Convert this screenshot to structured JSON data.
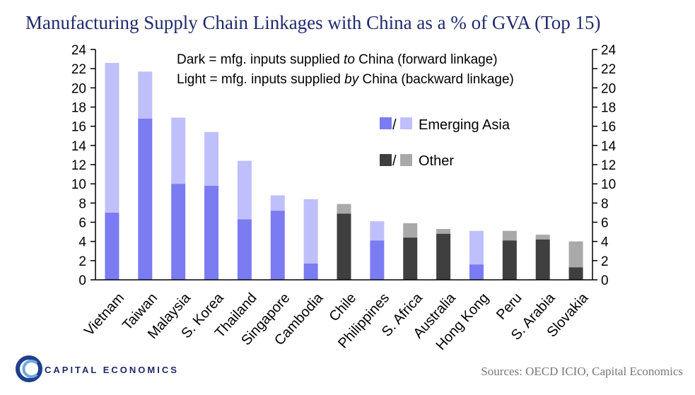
{
  "title": "Manufacturing Supply Chain Linkages with China as a % of GVA (Top 15)",
  "notes": {
    "dark_prefix": "Dark = mfg. inputs supplied ",
    "dark_em": "to",
    "dark_suffix": " China (forward linkage)",
    "light_prefix": "Light = mfg. inputs supplied ",
    "light_em": "by",
    "light_suffix": " China (backward linkage)"
  },
  "legend": {
    "sep": "/",
    "emerging_asia": "Emerging Asia",
    "other": "Other"
  },
  "colors": {
    "asia_dark": "#7b7bf2",
    "asia_light": "#bfbffb",
    "other_dark": "#3f3f3f",
    "other_light": "#a9a9a9",
    "title": "#1f2a6b",
    "logo_blue": "#1f3f8f",
    "logo_light": "#6fa8dc"
  },
  "brand": "CAPITAL ECONOMICS",
  "source": "Sources:  OECD ICIO, Capital Economics",
  "chart_data": {
    "type": "bar",
    "stacked": true,
    "categories": [
      "Vietnam",
      "Taiwan",
      "Malaysia",
      "S. Korea",
      "Thailand",
      "Singapore",
      "Cambodia",
      "Chile",
      "Philippines",
      "S. Africa",
      "Australia",
      "Hong Kong",
      "Peru",
      "S. Arabia",
      "Slovakia"
    ],
    "groups": [
      "Emerging Asia",
      "Emerging Asia",
      "Emerging Asia",
      "Emerging Asia",
      "Emerging Asia",
      "Emerging Asia",
      "Emerging Asia",
      "Other",
      "Emerging Asia",
      "Other",
      "Other",
      "Emerging Asia",
      "Other",
      "Other",
      "Other"
    ],
    "forward": [
      7.0,
      16.8,
      10.0,
      9.8,
      6.3,
      7.2,
      1.7,
      6.9,
      4.1,
      4.4,
      4.8,
      1.6,
      4.1,
      4.2,
      1.3
    ],
    "total": [
      22.6,
      21.7,
      16.9,
      15.4,
      12.4,
      8.8,
      8.4,
      7.9,
      6.1,
      5.9,
      5.3,
      5.1,
      5.1,
      4.7,
      4.0
    ],
    "ylim": [
      0,
      24
    ],
    "yticks": [
      "0",
      "2",
      "4",
      "6",
      "8",
      "10",
      "12",
      "14",
      "16",
      "18",
      "20",
      "22",
      "24"
    ],
    "dual_axis": true
  }
}
